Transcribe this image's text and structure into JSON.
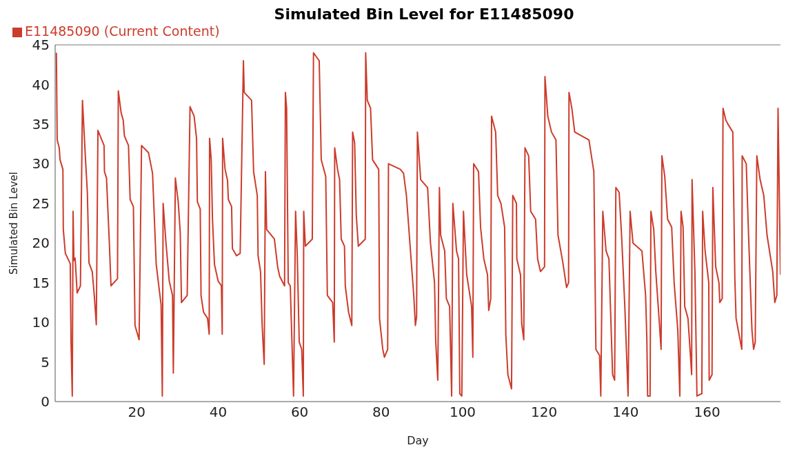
{
  "chart_data": {
    "type": "line",
    "title": "Simulated Bin Level for E11485090",
    "xlabel": "Day",
    "ylabel": "Simulated Bin Level",
    "x": [
      0.3,
      0.5,
      1.0,
      1.2,
      1.9,
      2.0,
      2.5,
      3.7,
      3.9,
      4.2,
      4.4,
      4.6,
      4.9,
      5.4,
      6.2,
      6.7,
      7.4,
      7.9,
      8.3,
      9.1,
      9.6,
      10.1,
      10.5,
      12.0,
      12.1,
      12.6,
      13.0,
      13.3,
      13.7,
      15.3,
      15.5,
      16.2,
      16.7,
      17.0,
      18.0,
      18.4,
      19.2,
      19.6,
      20.6,
      21.2,
      22.9,
      23.9,
      24.3,
      24.8,
      25.5,
      26.0,
      26.3,
      26.5,
      27.2,
      28.0,
      28.8,
      29.0,
      29.5,
      30.2,
      30.7,
      31.0,
      32.4,
      33.1,
      34.1,
      34.7,
      34.9,
      35.6,
      35.8,
      36.4,
      37.4,
      37.8,
      37.9,
      38.3,
      38.6,
      39.1,
      40.0,
      40.8,
      41.0,
      41.1,
      41.7,
      42.3,
      42.5,
      43.3,
      43.5,
      44.5,
      45.4,
      46.2,
      46.4,
      48.2,
      48.7,
      49.6,
      49.8,
      50.4,
      50.8,
      51.3,
      51.6,
      51.9,
      53.8,
      54.6,
      55.1,
      56.3,
      56.5,
      56.8,
      57.2,
      57.7,
      58.5,
      59.0,
      59.4,
      59.9,
      60.5,
      60.9,
      61.0,
      61.4,
      63.1,
      63.4,
      64.8,
      65.3,
      66.4,
      66.8,
      68.1,
      68.5,
      68.6,
      69.3,
      69.8,
      70.2,
      71.0,
      71.2,
      72.0,
      72.8,
      73.0,
      73.5,
      73.9,
      74.4,
      76.1,
      76.2,
      76.6,
      77.4,
      77.9,
      79.4,
      79.6,
      80.4,
      80.8,
      81.6,
      81.8,
      84.7,
      85.5,
      86.2,
      87.2,
      88.0,
      88.4,
      88.7,
      88.9,
      89.7,
      91.4,
      92.1,
      93.1,
      93.4,
      93.9,
      94.3,
      94.6,
      95.6,
      96.0,
      96.8,
      97.3,
      97.6,
      98.5,
      99.0,
      99.3,
      99.8,
      100.2,
      101.0,
      102.2,
      102.5,
      102.7,
      103.9,
      104.4,
      105.2,
      106.1,
      106.4,
      106.9,
      107.1,
      108.1,
      108.6,
      109.4,
      110.3,
      110.6,
      111.1,
      112.0,
      112.3,
      113.2,
      113.3,
      114.2,
      114.5,
      115.0,
      115.3,
      116.2,
      116.7,
      117.9,
      118.4,
      119.1,
      120.1,
      120.2,
      120.9,
      121.8,
      122.9,
      123.4,
      124.6,
      125.5,
      126.0,
      126.1,
      126.8,
      127.5,
      131.0,
      132.2,
      132.7,
      133.6,
      133.9,
      134.4,
      135.2,
      135.9,
      136.8,
      137.3,
      137.6,
      138.4,
      139.0,
      139.8,
      140.3,
      140.6,
      141.1,
      141.8,
      144.0,
      144.9,
      145.2,
      145.4,
      146.0,
      146.2,
      146.9,
      147.4,
      148.2,
      148.7,
      148.9,
      149.6,
      150.3,
      151.3,
      151.9,
      152.8,
      153.3,
      153.6,
      154.1,
      154.5,
      155.3,
      155.8,
      156.2,
      156.3,
      157.0,
      157.5,
      158.7,
      158.9,
      159.5,
      160.4,
      160.5,
      161.2,
      161.4,
      162.1,
      162.9,
      163.1,
      163.7,
      163.9,
      164.6,
      165.1,
      166.3,
      166.8,
      167.1,
      168.5,
      168.6,
      169.6,
      170.2,
      171.0,
      171.4,
      171.8,
      172.2,
      173.0,
      173.9,
      174.7,
      176.1,
      176.6,
      177.1,
      177.4,
      178.0
    ],
    "series": [
      {
        "name": "E11485090 (Current Content)",
        "color": "#cc3b2b",
        "values": [
          44,
          33,
          32,
          30.5,
          29.3,
          21.7,
          18.7,
          17.4,
          7.5,
          0.7,
          24,
          17.8,
          18.1,
          13.7,
          14.6,
          38,
          31,
          26.4,
          17.5,
          16.4,
          13.4,
          9.7,
          34.2,
          32.3,
          29,
          28.2,
          23.5,
          20,
          14.6,
          15.5,
          39.2,
          36.4,
          35.5,
          33.5,
          32.3,
          25.5,
          24.6,
          9.6,
          7.8,
          32.3,
          31.4,
          28.8,
          23.7,
          17.3,
          14.3,
          12.2,
          0.7,
          25,
          20,
          15.2,
          13.4,
          3.6,
          28.2,
          25.2,
          21.3,
          12.5,
          13.4,
          37.2,
          36,
          33.2,
          25.2,
          24.3,
          13.4,
          11.3,
          10.5,
          8.5,
          33.2,
          30.5,
          23.1,
          17.3,
          15.2,
          14.6,
          8.5,
          33.2,
          29.3,
          27.9,
          25.5,
          24.6,
          19.3,
          18.4,
          18.7,
          43,
          39,
          38,
          29,
          26,
          18.4,
          16.4,
          9.6,
          4.7,
          29,
          21.7,
          20.5,
          17,
          15.8,
          14.6,
          39,
          37,
          15,
          14.6,
          0.7,
          24,
          18.7,
          7.5,
          6.6,
          0.7,
          24,
          19.6,
          20.5,
          44,
          43,
          30.5,
          28.4,
          13.4,
          12.5,
          7.5,
          32,
          29.3,
          28,
          20.5,
          19.6,
          14.6,
          11.3,
          9.6,
          34,
          32.6,
          23.5,
          19.6,
          20.5,
          44,
          38,
          37,
          30.5,
          29.3,
          10.5,
          6.6,
          5.6,
          6.6,
          30,
          29.3,
          28.8,
          26,
          19,
          13.4,
          9.6,
          10.7,
          34,
          28,
          27,
          20,
          15,
          7.5,
          2.7,
          27,
          21,
          19,
          13,
          12,
          0.7,
          25,
          19,
          18,
          1,
          0.7,
          24,
          16,
          12,
          5.6,
          30,
          29,
          22,
          18,
          16,
          11.5,
          13,
          36,
          34,
          26,
          25,
          22,
          8.4,
          3.4,
          1.6,
          26,
          25,
          18,
          16,
          9.8,
          7.8,
          32,
          31,
          24,
          23,
          18,
          16.4,
          17,
          41,
          36,
          34,
          33,
          21,
          17.5,
          14.4,
          15,
          39,
          37,
          34,
          33,
          29,
          6.6,
          5.8,
          0.7,
          24,
          19,
          18,
          3.4,
          2.7,
          27,
          26.4,
          21,
          12,
          5,
          0.7,
          24,
          20,
          19,
          13.4,
          8,
          0.7,
          0.7,
          24,
          21.7,
          16.4,
          10.5,
          6.6,
          31,
          28.4,
          23,
          22,
          15,
          9,
          0.7,
          24,
          22,
          12,
          10.5,
          6.6,
          3.4,
          28,
          16.4,
          0.7,
          1,
          24,
          19,
          15,
          2.7,
          3.4,
          27,
          17,
          15,
          12.5,
          13,
          37,
          35.5,
          35,
          34,
          15.5,
          10.5,
          6.6,
          31,
          30,
          20.5,
          9,
          6.6,
          7.5,
          31,
          28,
          26,
          21,
          16.4,
          12.5,
          13.4,
          37,
          16
        ]
      }
    ],
    "xlim": [
      0,
      178
    ],
    "xticks": [
      20,
      40,
      60,
      80,
      100,
      120,
      140,
      160
    ],
    "ylim": [
      0,
      45
    ],
    "yticks": [
      0,
      5,
      10,
      15,
      20,
      25,
      30,
      35,
      40,
      45
    ],
    "grid": false,
    "legend": "top left",
    "marker": "none",
    "line_style": "solid"
  }
}
